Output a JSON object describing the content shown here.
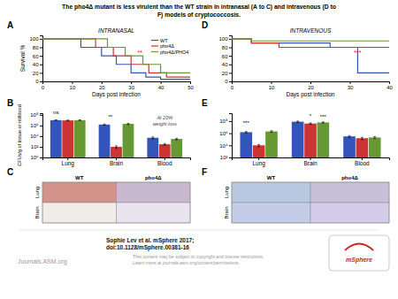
{
  "title": "The pho4Δ mutant is less virulent than the WT strain in intranasal (A to C) and intravenous (D to\nF) models of cryptococcosis.",
  "chart_data": [
    {
      "type": "line",
      "panel_label": "A",
      "title": "INTRANASAL",
      "xlabel": "Days post infection",
      "ylabel": "Survival %",
      "xlim": [
        0,
        50
      ],
      "ylim": [
        0,
        108
      ],
      "xticks": [
        0,
        10,
        20,
        30,
        40,
        50
      ],
      "yticks": [
        0,
        20,
        40,
        60,
        80,
        100
      ],
      "legend": "upper right",
      "series": [
        {
          "name": "WT",
          "color": "#3355bb",
          "x": [
            0,
            13,
            13,
            20,
            20,
            25,
            25,
            30,
            30,
            35,
            35,
            40,
            40,
            50
          ],
          "values": [
            100,
            100,
            80,
            80,
            60,
            60,
            40,
            40,
            20,
            20,
            10,
            10,
            5,
            5
          ]
        },
        {
          "name": "pho4Δ",
          "color": "#cc3333",
          "x": [
            0,
            18,
            18,
            24,
            24,
            30,
            30,
            36,
            36,
            42,
            42,
            50
          ],
          "values": [
            100,
            100,
            80,
            80,
            60,
            60,
            40,
            40,
            20,
            20,
            10,
            10
          ]
        },
        {
          "name": "pho4Δ/PHO4",
          "color": "#669933",
          "x": [
            0,
            22,
            22,
            28,
            28,
            34,
            34,
            40,
            40,
            50
          ],
          "values": [
            100,
            100,
            80,
            80,
            60,
            60,
            40,
            40,
            20,
            20
          ]
        }
      ],
      "annotations": [
        {
          "text": "**",
          "x": 33,
          "y": 62,
          "color": "red"
        }
      ]
    },
    {
      "type": "line",
      "panel_label": "D",
      "title": "INTRAVENOUS",
      "xlabel": "Days post infection",
      "xlim": [
        0,
        40
      ],
      "ylim": [
        0,
        108
      ],
      "xticks": [
        0,
        10,
        20,
        30,
        40
      ],
      "yticks": [
        0,
        20,
        40,
        60,
        80,
        100
      ],
      "series": [
        {
          "color": "#3355bb",
          "x": [
            0,
            5,
            5,
            25,
            25,
            32,
            32,
            40
          ],
          "values": [
            100,
            100,
            90,
            90,
            80,
            80,
            20,
            20
          ]
        },
        {
          "color": "#cc3333",
          "x": [
            0,
            5,
            5,
            12,
            12,
            40
          ],
          "values": [
            100,
            100,
            90,
            90,
            80,
            80
          ]
        },
        {
          "color": "#669933",
          "x": [
            0,
            5,
            5,
            40
          ],
          "values": [
            100,
            100,
            95,
            95
          ]
        }
      ],
      "annotations": [
        {
          "text": "***",
          "x": 32,
          "y": 62,
          "color": "red"
        }
      ]
    },
    {
      "type": "bar",
      "panel_label": "B",
      "ylabel": "CFUs/g of tissue or ml/blood",
      "categories": [
        "Lung",
        "Brain",
        "Blood"
      ],
      "log": "y",
      "ylim": [
        1,
        200000000
      ],
      "yticks": [
        {
          "value": 1,
          "label": "10⁰"
        },
        {
          "value": 100,
          "label": "10²"
        },
        {
          "value": 10000,
          "label": "10⁴"
        },
        {
          "value": 1000000,
          "label": "10⁶"
        },
        {
          "value": 100000000,
          "label": "10⁸"
        }
      ],
      "series": [
        {
          "color": "#3355bb",
          "values": [
            10000000,
            1500000,
            5000
          ],
          "errors": [
            1500000,
            400000,
            2000
          ]
        },
        {
          "color": "#cc3333",
          "values": [
            9000000,
            100,
            300
          ],
          "errors": [
            1500000,
            50,
            100
          ]
        },
        {
          "color": "#669933",
          "values": [
            10000000,
            2000000,
            3000
          ],
          "errors": [
            1500000,
            500000,
            1000
          ]
        }
      ],
      "annotations": [
        {
          "text": "ns",
          "category": "Lung",
          "series": [
            0
          ],
          "y": 120000000
        },
        {
          "text": "**",
          "category": "Brain",
          "series": [
            0,
            1
          ],
          "y": 18000000
        },
        {
          "text": "At 20%\nweight loss",
          "category": "Blood"
        }
      ]
    },
    {
      "type": "bar",
      "panel_label": "E",
      "categories": [
        "Lung",
        "Brain",
        "Blood"
      ],
      "log": "y",
      "ylim": [
        100,
        2000000000
      ],
      "yticks": [
        {
          "value": 100,
          "label": "10²"
        },
        {
          "value": 10000,
          "label": "10⁴"
        },
        {
          "value": 1000000,
          "label": "10⁶"
        },
        {
          "value": 100000000,
          "label": "10⁸"
        }
      ],
      "series": [
        {
          "color": "#3355bb",
          "values": [
            1500000,
            80000000,
            300000
          ],
          "errors": [
            400000,
            20000000,
            100000
          ]
        },
        {
          "color": "#cc3333",
          "values": [
            10000,
            40000000,
            150000
          ],
          "errors": [
            4000,
            10000000,
            60000
          ]
        },
        {
          "color": "#669933",
          "values": [
            2000000,
            60000000,
            200000
          ],
          "errors": [
            600000,
            15000000,
            70000
          ]
        }
      ],
      "annotations": [
        {
          "text": "***",
          "category": "Lung",
          "series": [
            0
          ],
          "y": 22500000
        },
        {
          "text": "*",
          "category": "Brain",
          "series": [
            1
          ],
          "y": 400000000
        },
        {
          "text": "***",
          "category": "Brain",
          "series": [
            2
          ],
          "y": 300000000
        }
      ]
    },
    {
      "type": "grid",
      "panel_label": "C",
      "categories": [
        "WT",
        "pho4Δ"
      ],
      "rows": [
        "Lung",
        "Brain"
      ],
      "colors": [
        "#d4938a",
        "#c8b8d0",
        "#f0ece8",
        "#e8e4f0"
      ]
    },
    {
      "type": "grid",
      "panel_label": "F",
      "categories": [
        "WT",
        "pho4Δ"
      ],
      "rows": [
        "Lung",
        "Brain"
      ],
      "colors": [
        "#b8c8e0",
        "#c8c0d8",
        "#c4cce8",
        "#d4cce8"
      ]
    }
  ],
  "annotations": [
    {
      "text": "Sophie Lev et al. mSphere 2017;\ndoi:10.1128/mSphere.00381-16"
    },
    {
      "text": "Journals.ASM.org"
    },
    {
      "text": "This content may be subject to copyright and license restrictions.\nLearn more at journals.asm.org/content/permissions"
    },
    {
      "text": "mSphere",
      "color": "#cc2222"
    }
  ]
}
